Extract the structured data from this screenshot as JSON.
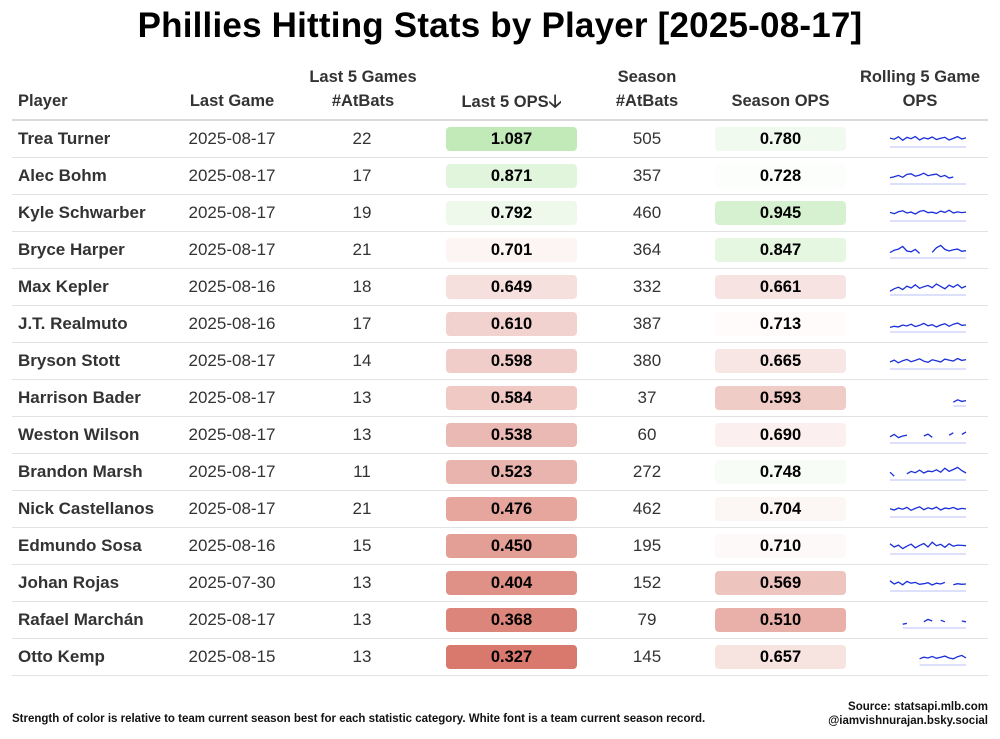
{
  "title": "Phillies Hitting Stats by Player [2025-08-17]",
  "columns": {
    "player": "Player",
    "last_game": "Last Game",
    "last5_ab_line1": "Last 5 Games",
    "last5_ab_line2": "#AtBats",
    "last5_ops": "Last 5 OPS",
    "season_ab_line1": "Season",
    "season_ab_line2": "#AtBats",
    "season_ops": "Season OPS",
    "rolling_line1": "Rolling 5 Game",
    "rolling_line2": "OPS"
  },
  "sort_icon": "arrow-down-icon",
  "colors": {
    "positive": "#c2eab9",
    "negative": "#d9796e",
    "neutral": "#ffffff",
    "sparkline": "#1a2fd8"
  },
  "chart_data": {
    "type": "table",
    "title": "Phillies Hitting Stats by Player [2025-08-17]",
    "color_midpoint_ops": 0.72,
    "rows": [
      {
        "player": "Trea Turner",
        "last_game": "2025-08-17",
        "last5_ab": "22",
        "last5_ops": "1.087",
        "season_ab": "505",
        "season_ops": "0.780",
        "spark": [
          0.62,
          0.55,
          0.7,
          0.48,
          0.66,
          0.58,
          0.72,
          0.5,
          0.64,
          0.57,
          0.69,
          0.53,
          0.61,
          0.67,
          0.5,
          0.6,
          0.71,
          0.56,
          0.63
        ]
      },
      {
        "player": "Alec Bohm",
        "last_game": "2025-08-17",
        "last5_ab": "17",
        "last5_ops": "0.871",
        "season_ab": "357",
        "season_ops": "0.728",
        "spark": [
          0.45,
          0.52,
          0.6,
          0.48,
          0.66,
          0.7,
          0.55,
          0.62,
          0.74,
          0.58,
          0.64,
          0.68,
          0.52,
          0.6,
          0.44,
          0.5,
          0.0,
          0.0,
          0.35
        ]
      },
      {
        "player": "Kyle Schwarber",
        "last_game": "2025-08-17",
        "last5_ab": "19",
        "last5_ops": "0.792",
        "season_ab": "460",
        "season_ops": "0.945",
        "spark": [
          0.6,
          0.52,
          0.64,
          0.7,
          0.56,
          0.62,
          0.5,
          0.66,
          0.72,
          0.58,
          0.61,
          0.54,
          0.68,
          0.6,
          0.74,
          0.57,
          0.63,
          0.59,
          0.62
        ]
      },
      {
        "player": "Bryce Harper",
        "last_game": "2025-08-17",
        "last5_ab": "21",
        "last5_ops": "0.701",
        "season_ab": "364",
        "season_ops": "0.847",
        "spark": [
          0.4,
          0.55,
          0.62,
          0.78,
          0.5,
          0.45,
          0.6,
          0.35,
          0.0,
          0.0,
          0.42,
          0.7,
          0.85,
          0.6,
          0.5,
          0.58,
          0.62,
          0.48,
          0.52
        ]
      },
      {
        "player": "Max Kepler",
        "last_game": "2025-08-16",
        "last5_ab": "18",
        "last5_ops": "0.649",
        "season_ab": "332",
        "season_ops": "0.661",
        "spark": [
          0.3,
          0.45,
          0.55,
          0.4,
          0.62,
          0.5,
          0.7,
          0.48,
          0.58,
          0.66,
          0.52,
          0.75,
          0.6,
          0.45,
          0.68,
          0.55,
          0.72,
          0.5,
          0.62
        ]
      },
      {
        "player": "J.T. Realmuto",
        "last_game": "2025-08-16",
        "last5_ab": "17",
        "last5_ops": "0.610",
        "season_ab": "387",
        "season_ops": "0.713",
        "spark": [
          0.35,
          0.42,
          0.38,
          0.5,
          0.44,
          0.55,
          0.4,
          0.48,
          0.6,
          0.45,
          0.52,
          0.38,
          0.5,
          0.58,
          0.42,
          0.55,
          0.62,
          0.48,
          0.5
        ]
      },
      {
        "player": "Bryson Stott",
        "last_game": "2025-08-17",
        "last5_ab": "14",
        "last5_ops": "0.598",
        "season_ab": "380",
        "season_ops": "0.665",
        "spark": [
          0.5,
          0.62,
          0.45,
          0.58,
          0.66,
          0.52,
          0.6,
          0.7,
          0.55,
          0.48,
          0.64,
          0.58,
          0.5,
          0.68,
          0.62,
          0.56,
          0.72,
          0.6,
          0.65
        ]
      },
      {
        "player": "Harrison Bader",
        "last_game": "2025-08-17",
        "last5_ab": "13",
        "last5_ops": "0.584",
        "season_ab": "37",
        "season_ops": "0.593",
        "spark": [
          0,
          0,
          0,
          0,
          0,
          0,
          0,
          0,
          0,
          0,
          0,
          0,
          0,
          0,
          0,
          0.3,
          0.45,
          0.35,
          0.4
        ]
      },
      {
        "player": "Weston Wilson",
        "last_game": "2025-08-17",
        "last5_ab": "13",
        "last5_ops": "0.538",
        "season_ab": "60",
        "season_ops": "0.690",
        "spark": [
          0.45,
          0.6,
          0.4,
          0.5,
          0.55,
          0.0,
          0.0,
          0.0,
          0.5,
          0.62,
          0.42,
          0.0,
          0.0,
          0.0,
          0.55,
          0.7,
          0.0,
          0.6,
          0.75
        ]
      },
      {
        "player": "Brandon Marsh",
        "last_game": "2025-08-17",
        "last5_ab": "11",
        "last5_ops": "0.523",
        "season_ab": "272",
        "season_ops": "0.748",
        "spark": [
          0.55,
          0.3,
          0.0,
          0.0,
          0.45,
          0.6,
          0.52,
          0.68,
          0.5,
          0.62,
          0.58,
          0.7,
          0.55,
          0.8,
          0.6,
          0.72,
          0.85,
          0.65,
          0.5
        ]
      },
      {
        "player": "Nick Castellanos",
        "last_game": "2025-08-17",
        "last5_ab": "21",
        "last5_ops": "0.476",
        "season_ab": "462",
        "season_ops": "0.704",
        "spark": [
          0.58,
          0.5,
          0.62,
          0.55,
          0.66,
          0.48,
          0.6,
          0.7,
          0.52,
          0.64,
          0.56,
          0.68,
          0.5,
          0.62,
          0.58,
          0.66,
          0.54,
          0.6,
          0.57
        ]
      },
      {
        "player": "Edmundo Sosa",
        "last_game": "2025-08-16",
        "last5_ab": "15",
        "last5_ops": "0.450",
        "season_ab": "195",
        "season_ops": "0.710",
        "spark": [
          0.7,
          0.5,
          0.62,
          0.4,
          0.55,
          0.68,
          0.45,
          0.6,
          0.72,
          0.5,
          0.8,
          0.58,
          0.66,
          0.48,
          0.7,
          0.55,
          0.62,
          0.6,
          0.58
        ]
      },
      {
        "player": "Johan Rojas",
        "last_game": "2025-07-30",
        "last5_ab": "13",
        "last5_ops": "0.404",
        "season_ab": "152",
        "season_ops": "0.569",
        "spark": [
          0.7,
          0.5,
          0.62,
          0.45,
          0.66,
          0.55,
          0.6,
          0.48,
          0.52,
          0.58,
          0.44,
          0.55,
          0.5,
          0.6,
          0.0,
          0.45,
          0.52,
          0.48,
          0.5
        ]
      },
      {
        "player": "Rafael Marchán",
        "last_game": "2025-08-17",
        "last5_ab": "13",
        "last5_ops": "0.368",
        "season_ab": "79",
        "season_ops": "0.510",
        "spark": [
          0,
          0,
          0,
          0.3,
          0.35,
          0.0,
          0.4,
          0.0,
          0.45,
          0.6,
          0.5,
          0.0,
          0.55,
          0.45,
          0.0,
          0.4,
          0.0,
          0.5,
          0.45
        ]
      },
      {
        "player": "Otto Kemp",
        "last_game": "2025-08-15",
        "last5_ab": "13",
        "last5_ops": "0.327",
        "season_ab": "145",
        "season_ops": "0.657",
        "spark": [
          0,
          0,
          0,
          0,
          0,
          0,
          0,
          0.45,
          0.55,
          0.5,
          0.6,
          0.48,
          0.55,
          0.62,
          0.5,
          0.45,
          0.58,
          0.66,
          0.5
        ]
      }
    ]
  },
  "footnote": "Strength of color is relative to team current season best for each statistic category. White font is a team current season record.",
  "source_line1": "Source: statsapi.mlb.com",
  "source_line2": "@iamvishnurajan.bsky.social"
}
